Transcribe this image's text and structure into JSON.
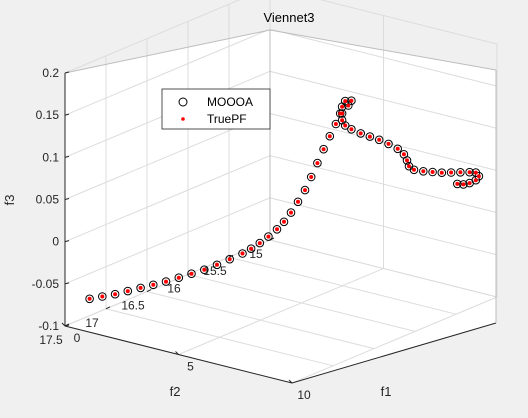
{
  "chart_data": {
    "type": "scatter3d",
    "title": "Viennet3",
    "xlabel": "f1",
    "ylabel": "f2",
    "zlabel": "f3",
    "xlim": [
      0,
      10
    ],
    "ylim": [
      15,
      17.5
    ],
    "zlim": [
      -0.1,
      0.2
    ],
    "xticks": [
      "0",
      "5",
      "10"
    ],
    "yticks": [
      "15",
      "15.5",
      "16",
      "16.5",
      "17",
      "17.5"
    ],
    "zticks": [
      "-0.1",
      "-0.05",
      "0",
      "0.05",
      "0.1",
      "0.15",
      "0.2"
    ],
    "grid": true,
    "legend_position": "top-left",
    "series": [
      {
        "name": "MOOOA",
        "marker": "circle",
        "color": "#000000"
      },
      {
        "name": "TruePF",
        "marker": "dot",
        "color": "#ff0000"
      }
    ],
    "points": [
      [
        0.0,
        17.2,
        -0.08
      ],
      [
        0.2,
        17.1,
        -0.08
      ],
      [
        0.4,
        17.0,
        -0.08
      ],
      [
        0.6,
        16.9,
        -0.079
      ],
      [
        0.8,
        16.8,
        -0.078
      ],
      [
        1.0,
        16.7,
        -0.077
      ],
      [
        1.2,
        16.6,
        -0.076
      ],
      [
        1.4,
        16.5,
        -0.074
      ],
      [
        1.6,
        16.4,
        -0.072
      ],
      [
        1.8,
        16.3,
        -0.07
      ],
      [
        2.0,
        16.2,
        -0.067
      ],
      [
        2.2,
        16.1,
        -0.063
      ],
      [
        2.4,
        16.0,
        -0.059
      ],
      [
        2.6,
        15.95,
        -0.054
      ],
      [
        2.8,
        15.9,
        -0.048
      ],
      [
        3.0,
        15.85,
        -0.041
      ],
      [
        3.2,
        15.8,
        -0.033
      ],
      [
        3.4,
        15.77,
        -0.024
      ],
      [
        3.6,
        15.74,
        -0.013
      ],
      [
        3.8,
        15.71,
        0.0
      ],
      [
        4.0,
        15.68,
        0.014
      ],
      [
        4.2,
        15.66,
        0.03
      ],
      [
        4.4,
        15.64,
        0.047
      ],
      [
        4.6,
        15.62,
        0.064
      ],
      [
        4.8,
        15.6,
        0.08
      ],
      [
        5.0,
        15.58,
        0.095
      ],
      [
        5.2,
        15.56,
        0.108
      ],
      [
        5.4,
        15.54,
        0.118
      ],
      [
        5.5,
        15.53,
        0.124
      ],
      [
        5.3,
        15.55,
        0.123
      ],
      [
        5.2,
        15.56,
        0.116
      ],
      [
        5.15,
        15.57,
        0.108
      ],
      [
        5.2,
        15.56,
        0.1
      ],
      [
        5.3,
        15.55,
        0.094
      ],
      [
        5.5,
        15.53,
        0.09
      ],
      [
        5.8,
        15.5,
        0.086
      ],
      [
        6.1,
        15.47,
        0.083
      ],
      [
        6.4,
        15.44,
        0.08
      ],
      [
        6.7,
        15.41,
        0.076
      ],
      [
        7.0,
        15.38,
        0.071
      ],
      [
        7.2,
        15.36,
        0.065
      ],
      [
        7.3,
        15.35,
        0.058
      ],
      [
        7.35,
        15.34,
        0.051
      ],
      [
        7.5,
        15.32,
        0.047
      ],
      [
        7.8,
        15.29,
        0.046
      ],
      [
        8.1,
        15.26,
        0.046
      ],
      [
        8.4,
        15.23,
        0.046
      ],
      [
        8.7,
        15.2,
        0.047
      ],
      [
        9.0,
        15.17,
        0.048
      ],
      [
        9.3,
        15.14,
        0.049
      ],
      [
        9.5,
        15.12,
        0.049
      ],
      [
        9.6,
        15.11,
        0.045
      ],
      [
        9.5,
        15.12,
        0.04
      ],
      [
        9.3,
        15.14,
        0.036
      ],
      [
        9.1,
        15.16,
        0.034
      ],
      [
        8.9,
        15.18,
        0.034
      ]
    ]
  }
}
